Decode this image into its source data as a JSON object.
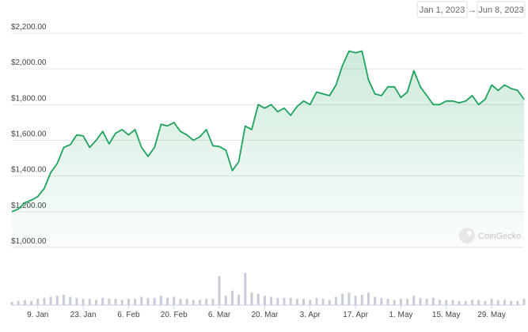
{
  "chart_data": {
    "type": "line",
    "date_range": {
      "from": "Jan 1, 2023",
      "separator": "→",
      "to": "Jun 8, 2023"
    },
    "watermark": "CoinGecko",
    "color": "#1fa35c",
    "x": [
      "2023-01-01",
      "2023-01-03",
      "2023-01-05",
      "2023-01-07",
      "2023-01-09",
      "2023-01-11",
      "2023-01-13",
      "2023-01-15",
      "2023-01-17",
      "2023-01-19",
      "2023-01-21",
      "2023-01-23",
      "2023-01-25",
      "2023-01-27",
      "2023-01-29",
      "2023-01-31",
      "2023-02-02",
      "2023-02-04",
      "2023-02-06",
      "2023-02-08",
      "2023-02-10",
      "2023-02-12",
      "2023-02-14",
      "2023-02-16",
      "2023-02-18",
      "2023-02-20",
      "2023-02-22",
      "2023-02-24",
      "2023-02-26",
      "2023-02-28",
      "2023-03-02",
      "2023-03-04",
      "2023-03-06",
      "2023-03-08",
      "2023-03-10",
      "2023-03-12",
      "2023-03-14",
      "2023-03-16",
      "2023-03-18",
      "2023-03-20",
      "2023-03-22",
      "2023-03-24",
      "2023-03-26",
      "2023-03-28",
      "2023-03-30",
      "2023-04-01",
      "2023-04-03",
      "2023-04-05",
      "2023-04-07",
      "2023-04-09",
      "2023-04-11",
      "2023-04-13",
      "2023-04-15",
      "2023-04-17",
      "2023-04-19",
      "2023-04-21",
      "2023-04-23",
      "2023-04-25",
      "2023-04-27",
      "2023-04-29",
      "2023-05-01",
      "2023-05-03",
      "2023-05-05",
      "2023-05-07",
      "2023-05-09",
      "2023-05-11",
      "2023-05-13",
      "2023-05-15",
      "2023-05-17",
      "2023-05-19",
      "2023-05-21",
      "2023-05-23",
      "2023-05-25",
      "2023-05-27",
      "2023-05-29",
      "2023-05-31",
      "2023-06-02",
      "2023-06-04",
      "2023-06-06",
      "2023-06-08"
    ],
    "values": [
      1200,
      1215,
      1250,
      1265,
      1285,
      1330,
      1420,
      1470,
      1560,
      1575,
      1630,
      1625,
      1560,
      1600,
      1650,
      1580,
      1640,
      1660,
      1630,
      1660,
      1560,
      1510,
      1560,
      1690,
      1680,
      1700,
      1650,
      1630,
      1600,
      1620,
      1660,
      1570,
      1565,
      1545,
      1430,
      1480,
      1680,
      1660,
      1800,
      1780,
      1800,
      1760,
      1780,
      1740,
      1790,
      1820,
      1800,
      1870,
      1860,
      1850,
      1910,
      2020,
      2100,
      2090,
      2100,
      1940,
      1860,
      1850,
      1900,
      1900,
      1840,
      1870,
      1990,
      1900,
      1850,
      1800,
      1800,
      1820,
      1820,
      1810,
      1820,
      1850,
      1800,
      1830,
      1910,
      1880,
      1910,
      1890,
      1880,
      1830
    ],
    "xlim": [
      "2023-01-01",
      "2023-06-08"
    ],
    "xticks": [
      {
        "value": "2023-01-09",
        "label": "9. Jan"
      },
      {
        "value": "2023-01-23",
        "label": "23. Jan"
      },
      {
        "value": "2023-02-06",
        "label": "6. Feb"
      },
      {
        "value": "2023-02-20",
        "label": "20. Feb"
      },
      {
        "value": "2023-03-06",
        "label": "6. Mar"
      },
      {
        "value": "2023-03-20",
        "label": "20. Mar"
      },
      {
        "value": "2023-04-03",
        "label": "3. Apr"
      },
      {
        "value": "2023-04-17",
        "label": "17. Apr"
      },
      {
        "value": "2023-05-01",
        "label": "1. May"
      },
      {
        "value": "2023-05-15",
        "label": "15. May"
      },
      {
        "value": "2023-05-29",
        "label": "29. May"
      }
    ],
    "ylim": [
      1000,
      2200
    ],
    "yticks": [
      {
        "value": 1000,
        "label": "$1,000.00"
      },
      {
        "value": 1200,
        "label": "$1,200.00"
      },
      {
        "value": 1400,
        "label": "$1,400.00"
      },
      {
        "value": 1600,
        "label": "$1,600.00"
      },
      {
        "value": 1800,
        "label": "$1,800.00"
      },
      {
        "value": 2000,
        "label": "$2,000.00"
      },
      {
        "value": 2200,
        "label": "$2,200.00"
      }
    ],
    "grid": true,
    "volume": {
      "color": "#c8ccd6",
      "ylim": [
        0,
        35
      ],
      "values": [
        3,
        4,
        5,
        4,
        6,
        7,
        8,
        9,
        10,
        8,
        7,
        6,
        6,
        5,
        7,
        6,
        6,
        5,
        6,
        6,
        8,
        7,
        7,
        9,
        7,
        8,
        6,
        6,
        5,
        5,
        6,
        6,
        28,
        9,
        14,
        10,
        31,
        12,
        11,
        9,
        8,
        7,
        7,
        7,
        6,
        6,
        5,
        7,
        6,
        5,
        8,
        11,
        12,
        9,
        10,
        12,
        8,
        7,
        6,
        5,
        6,
        6,
        9,
        7,
        6,
        7,
        5,
        5,
        5,
        4,
        4,
        5,
        5,
        4,
        6,
        5,
        5,
        4,
        4,
        6
      ]
    }
  }
}
